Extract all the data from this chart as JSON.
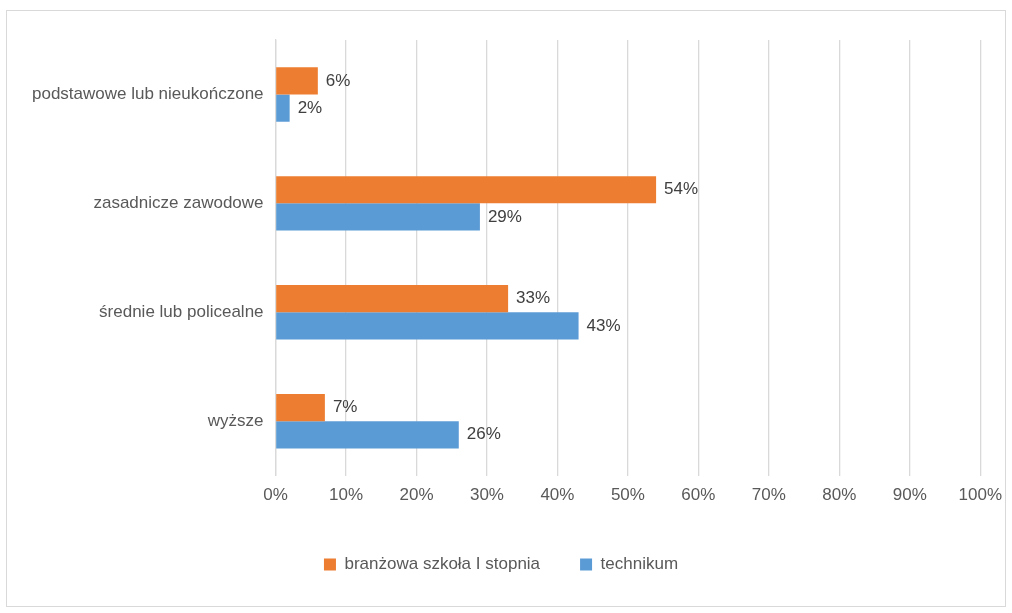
{
  "chart_data": {
    "type": "bar",
    "orientation": "horizontal",
    "categories": [
      "podstawowe lub nieukończone",
      "zasadnicze zawodowe",
      "średnie lub policealne",
      "wyższe"
    ],
    "series": [
      {
        "name": "branżowa szkoła I stopnia",
        "color": "#ed7d31",
        "values": [
          6,
          54,
          33,
          7
        ],
        "value_labels": [
          "6%",
          "54%",
          "33%",
          "7%"
        ]
      },
      {
        "name": "technikum",
        "color": "#5b9bd5",
        "values": [
          2,
          29,
          43,
          26
        ],
        "value_labels": [
          "2%",
          "29%",
          "43%",
          "26%"
        ]
      }
    ],
    "xlim": [
      0,
      100
    ],
    "xticks": [
      {
        "value": 0,
        "label": "0%"
      },
      {
        "value": 10,
        "label": "10%"
      },
      {
        "value": 20,
        "label": "20%"
      },
      {
        "value": 30,
        "label": "30%"
      },
      {
        "value": 40,
        "label": "40%"
      },
      {
        "value": 50,
        "label": "50%"
      },
      {
        "value": 60,
        "label": "60%"
      },
      {
        "value": 70,
        "label": "70%"
      },
      {
        "value": 80,
        "label": "80%"
      },
      {
        "value": 90,
        "label": "90%"
      },
      {
        "value": 100,
        "label": "100%"
      }
    ],
    "grid": "x",
    "legend": "bottom"
  }
}
